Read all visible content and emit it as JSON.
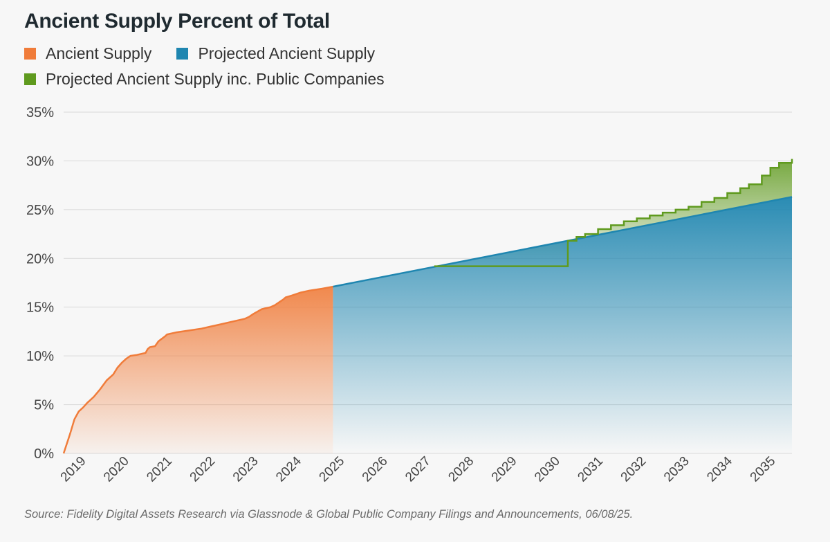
{
  "title": "Ancient Supply Percent of Total",
  "source": "Source: Fidelity Digital Assets Research via Glassnode & Global Public Company Filings and Announcements, 06/08/25.",
  "colors": {
    "ancient": "#f07c3a",
    "projected": "#1f86b0",
    "public": "#5f9a1e"
  },
  "legend": [
    {
      "label": "Ancient Supply",
      "color": "#f07c3a"
    },
    {
      "label": "Projected Ancient Supply",
      "color": "#1f86b0"
    },
    {
      "label": "Projected Ancient Supply inc. Public Companies",
      "color": "#5f9a1e"
    }
  ],
  "chart_data": {
    "type": "area",
    "title": "Ancient Supply Percent of Total",
    "xlabel": "",
    "ylabel": "",
    "y_unit": "%",
    "ylim": [
      0,
      35
    ],
    "yticks": [
      "0%",
      "5%",
      "10%",
      "15%",
      "20%",
      "25%",
      "30%",
      "35%"
    ],
    "xlim": [
      2018.6,
      2035.5
    ],
    "xticks": [
      "2019",
      "2020",
      "2021",
      "2022",
      "2023",
      "2024",
      "2025",
      "2026",
      "2027",
      "2028",
      "2029",
      "2030",
      "2031",
      "2032",
      "2033",
      "2034",
      "2035"
    ],
    "grid": true,
    "legend_position": "top-left",
    "series": [
      {
        "name": "Ancient Supply",
        "x": [
          2018.6,
          2018.75,
          2018.85,
          2018.95,
          2019.05,
          2019.15,
          2019.3,
          2019.45,
          2019.6,
          2019.75,
          2019.85,
          2019.95,
          2020.05,
          2020.15,
          2020.3,
          2020.5,
          2020.55,
          2020.6,
          2020.72,
          2020.8,
          2020.95,
          2021.0,
          2021.2,
          2021.5,
          2021.8,
          2022.0,
          2022.2,
          2022.5,
          2022.8,
          2022.9,
          2023.0,
          2023.2,
          2023.4,
          2023.5,
          2023.6,
          2023.7,
          2023.75,
          2023.9,
          2024.1,
          2024.3,
          2024.6,
          2024.85
        ],
        "values": [
          0,
          2.0,
          3.5,
          4.3,
          4.7,
          5.2,
          5.8,
          6.6,
          7.5,
          8.1,
          8.8,
          9.3,
          9.7,
          10.0,
          10.1,
          10.3,
          10.7,
          10.9,
          11.0,
          11.5,
          12.0,
          12.2,
          12.4,
          12.6,
          12.8,
          13.0,
          13.2,
          13.5,
          13.8,
          14.0,
          14.3,
          14.8,
          15.0,
          15.2,
          15.5,
          15.8,
          16.0,
          16.2,
          16.5,
          16.7,
          16.9,
          17.1
        ]
      },
      {
        "name": "Projected Ancient Supply",
        "x": [
          2024.85,
          2035.5
        ],
        "values": [
          17.1,
          26.3
        ]
      },
      {
        "name": "Projected Ancient Supply inc. Public Companies",
        "x": [
          2027.2,
          2030.3,
          2030.5,
          2030.7,
          2031.0,
          2031.3,
          2031.6,
          2031.9,
          2032.2,
          2032.5,
          2032.8,
          2033.1,
          2033.4,
          2033.7,
          2034.0,
          2034.3,
          2034.5,
          2034.8,
          2035.0,
          2035.2,
          2035.5
        ],
        "values": [
          19.2,
          21.8,
          22.2,
          22.5,
          23.0,
          23.4,
          23.8,
          24.1,
          24.4,
          24.7,
          25.0,
          25.3,
          25.8,
          26.2,
          26.7,
          27.2,
          27.6,
          28.5,
          29.3,
          29.8,
          30.2
        ]
      }
    ]
  }
}
